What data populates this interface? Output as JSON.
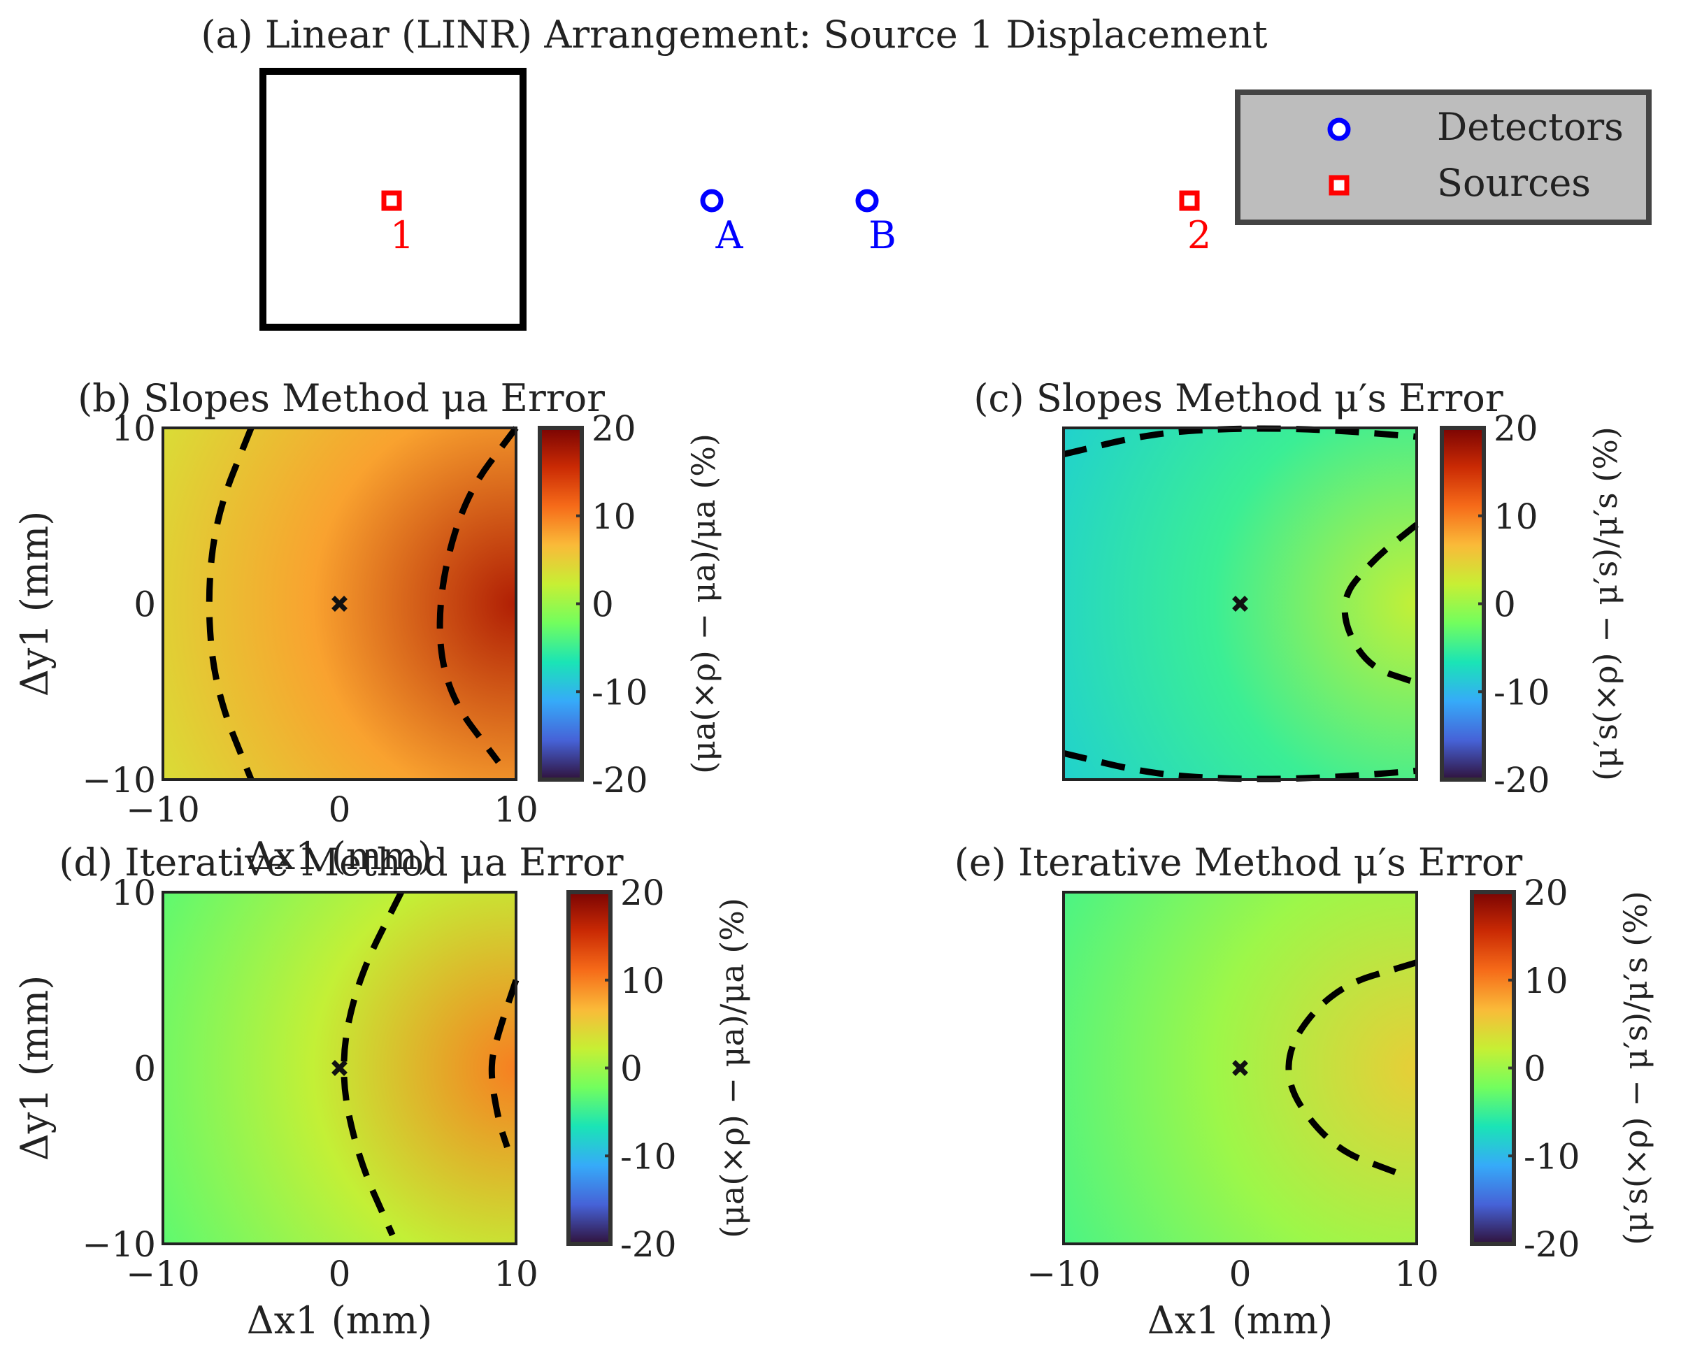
{
  "figure_title": "(a) Linear (LINR) Arrangement: Source 1 Displacement",
  "colors": {
    "detector": "#0000ff",
    "source": "#ff0000",
    "legend_bg": "#bdbdbd",
    "contour": "#000000",
    "colormap": [
      "#30123b",
      "#4662d7",
      "#36aaf9",
      "#1ae4b6",
      "#72fe5e",
      "#c7ef34",
      "#faba39",
      "#f66b19",
      "#ca2a04",
      "#7a0403"
    ]
  },
  "arrangement": {
    "legend": {
      "detectors": "Detectors",
      "sources": "Sources"
    },
    "markers": [
      {
        "kind": "source",
        "label": "1"
      },
      {
        "kind": "detector",
        "label": "A"
      },
      {
        "kind": "detector",
        "label": "B"
      },
      {
        "kind": "source",
        "label": "2"
      }
    ]
  },
  "colorbar": {
    "ticks": [
      "20",
      "10",
      "0",
      "-10",
      "-20"
    ],
    "label_mua": "(μa(×ρ) − μa)/μa (%)",
    "label_mus": "(μ′s(×ρ) − μ′s)/μ′s (%)"
  },
  "axes": {
    "xlabel": "Δx1 (mm)",
    "ylabel": "Δy1 (mm)",
    "xticks": [
      "−10",
      "0",
      "10"
    ],
    "yticks": [
      "10",
      "0",
      "−10"
    ]
  },
  "chart_data": [
    {
      "type": "heatmap",
      "title": "(b) Slopes Method μa Error",
      "xlabel": "Δx1 (mm)",
      "ylabel": "Δy1 (mm)",
      "xlim": [
        -10,
        10
      ],
      "ylim": [
        -10,
        10
      ],
      "clim": [
        -20,
        20
      ],
      "colorbar_label": "(μa(×ρ) − μa)/μa (%)",
      "center_marker": [
        0,
        0
      ],
      "value_samples": [
        {
          "x": -10,
          "y": 0,
          "value": 4
        },
        {
          "x": 0,
          "y": 0,
          "value": 8
        },
        {
          "x": 10,
          "y": 0,
          "value": 17
        },
        {
          "x": 10,
          "y": 10,
          "value": 14
        }
      ],
      "contours": [
        {
          "points": [
            [
              -5,
              10
            ],
            [
              -7,
              5
            ],
            [
              -7.5,
              0
            ],
            [
              -7,
              -5
            ],
            [
              -5,
              -10
            ]
          ]
        },
        {
          "points": [
            [
              10,
              10
            ],
            [
              7,
              6
            ],
            [
              5.5,
              0
            ],
            [
              6,
              -5
            ],
            [
              9,
              -9
            ]
          ]
        }
      ]
    },
    {
      "type": "heatmap",
      "title": "(c) Slopes Method μ′s Error",
      "xlabel": "",
      "ylabel": "",
      "xlim": [
        -10,
        10
      ],
      "ylim": [
        -10,
        10
      ],
      "clim": [
        -20,
        20
      ],
      "colorbar_label": "(μ′s(×ρ) − μ′s)/μ′s (%)",
      "center_marker": [
        0,
        0
      ],
      "value_samples": [
        {
          "x": -10,
          "y": 0,
          "value": -8
        },
        {
          "x": 0,
          "y": 0,
          "value": -5
        },
        {
          "x": 10,
          "y": 0,
          "value": 2
        },
        {
          "x": 0,
          "y": 10,
          "value": -9
        }
      ],
      "contours": [
        {
          "points": [
            [
              -10,
              8.5
            ],
            [
              -5,
              9.7
            ],
            [
              0,
              10
            ],
            [
              5,
              9.9
            ],
            [
              10,
              9.5
            ]
          ]
        },
        {
          "points": [
            [
              10,
              4.5
            ],
            [
              7.5,
              2.5
            ],
            [
              5.5,
              0
            ],
            [
              7,
              -3.5
            ],
            [
              10,
              -4.5
            ]
          ]
        },
        {
          "points": [
            [
              -10,
              -8.5
            ],
            [
              -5,
              -9.7
            ],
            [
              0,
              -10
            ],
            [
              5,
              -9.9
            ],
            [
              10,
              -9.5
            ]
          ]
        }
      ]
    },
    {
      "type": "heatmap",
      "title": "(d) Iterative Method μa Error",
      "xlabel": "Δx1 (mm)",
      "ylabel": "Δy1 (mm)",
      "xlim": [
        -10,
        10
      ],
      "ylim": [
        -10,
        10
      ],
      "clim": [
        -20,
        20
      ],
      "colorbar_label": "(μa(×ρ) − μa)/μa (%)",
      "center_marker": [
        0,
        0
      ],
      "value_samples": [
        {
          "x": -10,
          "y": 0,
          "value": -3
        },
        {
          "x": 0,
          "y": 0,
          "value": 2
        },
        {
          "x": 10,
          "y": 0,
          "value": 10
        },
        {
          "x": -10,
          "y": -10,
          "value": -4
        }
      ],
      "contours": [
        {
          "points": [
            [
              3.5,
              10
            ],
            [
              1,
              5
            ],
            [
              0,
              0
            ],
            [
              1,
              -5
            ],
            [
              3,
              -9.5
            ]
          ]
        },
        {
          "points": [
            [
              10,
              5
            ],
            [
              9,
              2
            ],
            [
              8.5,
              0
            ],
            [
              9,
              -3
            ],
            [
              9.5,
              -4.5
            ]
          ]
        }
      ]
    },
    {
      "type": "heatmap",
      "title": "(e) Iterative Method μ′s Error",
      "xlabel": "Δx1 (mm)",
      "ylabel": "",
      "xlim": [
        -10,
        10
      ],
      "ylim": [
        -10,
        10
      ],
      "clim": [
        -20,
        20
      ],
      "colorbar_label": "(μ′s(×ρ) − μ′s)/μ′s (%)",
      "center_marker": [
        0,
        0
      ],
      "value_samples": [
        {
          "x": -10,
          "y": 0,
          "value": -4
        },
        {
          "x": 0,
          "y": 0,
          "value": 0
        },
        {
          "x": 10,
          "y": 0,
          "value": 5
        },
        {
          "x": -10,
          "y": 10,
          "value": -5
        }
      ],
      "contours": [
        {
          "points": [
            [
              10,
              6
            ],
            [
              5,
              4.5
            ],
            [
              2,
              0
            ],
            [
              5,
              -4.5
            ],
            [
              9,
              -6
            ]
          ]
        }
      ]
    }
  ]
}
